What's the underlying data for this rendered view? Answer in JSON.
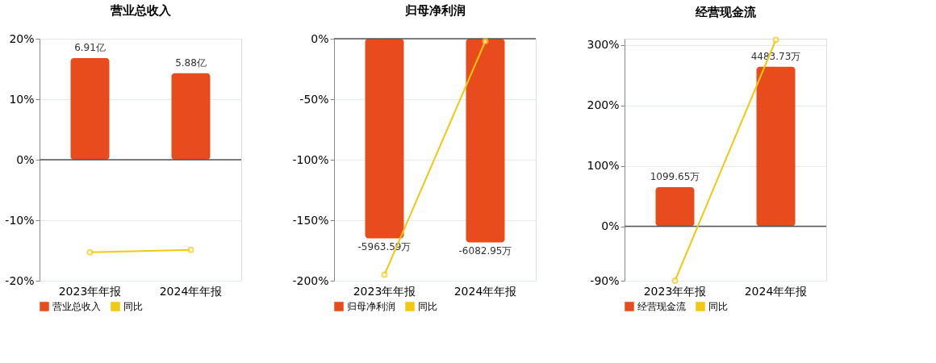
{
  "chart_data": [
    {
      "type": "bar",
      "title": "营业总收入",
      "categories": [
        "2023年年报",
        "2024年年报"
      ],
      "ylim": [
        -20,
        20
      ],
      "yticks": [
        {
          "value": 20,
          "label": "20%"
        },
        {
          "value": 10,
          "label": "10%"
        },
        {
          "value": 0,
          "label": "0%"
        },
        {
          "value": -10,
          "label": "-10%"
        },
        {
          "value": -20,
          "label": "-20%"
        }
      ],
      "y2lim": [
        -8.23,
        8.23
      ],
      "grid": "y",
      "legend": "bottom",
      "marker": "circle",
      "series": [
        {
          "name": "营业总收入",
          "axis": "y2",
          "color": "#e84c1c",
          "values": [
            6.91,
            5.88
          ],
          "value_labels": [
            "6.91亿",
            "5.88亿"
          ]
        },
        {
          "name": "同比",
          "type": "line",
          "color": "#f2c811",
          "values": [
            -15.3,
            -14.9
          ]
        }
      ]
    },
    {
      "type": "bar",
      "title": "归母净利润",
      "categories": [
        "2023年年报",
        "2024年年报"
      ],
      "ylim": [
        -200,
        0
      ],
      "yticks": [
        {
          "value": 0,
          "label": "0%"
        },
        {
          "value": -50,
          "label": "-50%"
        },
        {
          "value": -100,
          "label": "-100%"
        },
        {
          "value": -150,
          "label": "-150%"
        },
        {
          "value": -200,
          "label": "-200%"
        }
      ],
      "y2lim": [
        -7229,
        0
      ],
      "grid": "y",
      "legend": "bottom",
      "marker": "circle",
      "series": [
        {
          "name": "归母净利润",
          "axis": "y2",
          "color": "#e84c1c",
          "values": [
            -5963.59,
            -6082.95
          ],
          "value_labels": [
            "-5963.59万",
            "-6082.95万"
          ]
        },
        {
          "name": "同比",
          "type": "line",
          "color": "#f2c811",
          "values": [
            -195,
            -2
          ]
        }
      ]
    },
    {
      "type": "bar",
      "title": "经营现金流",
      "categories": [
        "2023年年报",
        "2024年年报"
      ],
      "ylim": [
        -90,
        310
      ],
      "yticks": [
        {
          "value": 300,
          "label": "300%"
        },
        {
          "value": 200,
          "label": "200%"
        },
        {
          "value": 100,
          "label": "100%"
        },
        {
          "value": 0,
          "label": "0%"
        },
        {
          "value": -90,
          "label": "-90%"
        }
      ],
      "y2lim": [
        -1530,
        5270
      ],
      "grid": "y",
      "legend": "bottom",
      "marker": "circle",
      "series": [
        {
          "name": "经营现金流",
          "axis": "y2",
          "color": "#e84c1c",
          "values": [
            1099.65,
            4483.73
          ],
          "value_labels": [
            "1099.65万",
            "4483.73万"
          ]
        },
        {
          "name": "同比",
          "type": "line",
          "color": "#f2c811",
          "values": [
            -90,
            308
          ]
        }
      ]
    }
  ]
}
